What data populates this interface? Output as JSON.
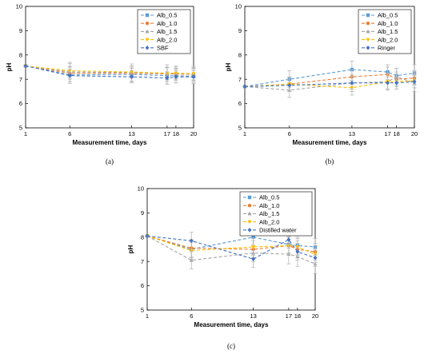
{
  "chart_data": [
    {
      "type": "line",
      "panel_label": "(a)",
      "xlabel": "Measurement time, days",
      "ylabel": "pH",
      "x": [
        1,
        6,
        13,
        17,
        18,
        20
      ],
      "xticks": [
        "1",
        "6",
        "13",
        "17",
        "18",
        "20"
      ],
      "ylim": [
        5,
        10
      ],
      "yticks": [
        "5",
        "6",
        "7",
        "8",
        "9",
        "10"
      ],
      "legend_position": "top-right",
      "series": [
        {
          "name": "Alb_0.5",
          "color": "#5b9bd5",
          "marker": "square",
          "values": [
            7.55,
            7.18,
            7.2,
            7.15,
            7.15,
            7.12
          ],
          "err": [
            0,
            0.35,
            0.3,
            0.35,
            0.3,
            0.3
          ]
        },
        {
          "name": "Alb_1.0",
          "color": "#ed7d31",
          "marker": "circle",
          "values": [
            7.55,
            7.25,
            7.25,
            7.22,
            7.22,
            7.2
          ],
          "err": [
            0,
            0.25,
            0.2,
            0.25,
            0.2,
            0.25
          ]
        },
        {
          "name": "Alb_1.5",
          "color": "#a5a5a5",
          "marker": "triangle-up",
          "values": [
            7.55,
            7.3,
            7.28,
            7.25,
            7.25,
            7.22
          ],
          "err": [
            0,
            0.4,
            0.35,
            0.35,
            0.3,
            0.3
          ]
        },
        {
          "name": "Alb_2.0",
          "color": "#ffc000",
          "marker": "triangle-down",
          "values": [
            7.55,
            7.35,
            7.3,
            7.25,
            7.25,
            7.23
          ],
          "err": [
            0,
            0.3,
            0.25,
            0.25,
            0.25,
            0.25
          ]
        },
        {
          "name": "SBF",
          "color": "#4472c4",
          "marker": "diamond",
          "values": [
            7.55,
            7.15,
            7.1,
            7.05,
            7.1,
            7.1
          ],
          "err": [
            0,
            0.25,
            0.25,
            0.25,
            0.25,
            0.25
          ]
        }
      ]
    },
    {
      "type": "line",
      "panel_label": "(b)",
      "xlabel": "Measurement time, days",
      "ylabel": "pH",
      "x": [
        1,
        6,
        13,
        17,
        18,
        20
      ],
      "xticks": [
        "1",
        "6",
        "13",
        "17",
        "18",
        "20"
      ],
      "ylim": [
        5,
        10
      ],
      "yticks": [
        "5",
        "6",
        "7",
        "8",
        "9",
        "10"
      ],
      "legend_position": "top-right",
      "series": [
        {
          "name": "Alb_0.5",
          "color": "#5b9bd5",
          "marker": "square",
          "values": [
            6.7,
            7.0,
            7.4,
            7.3,
            7.15,
            7.25
          ],
          "err": [
            0,
            0.35,
            0.35,
            0.3,
            0.3,
            0.35
          ]
        },
        {
          "name": "Alb_1.0",
          "color": "#ed7d31",
          "marker": "circle",
          "values": [
            6.7,
            6.8,
            7.1,
            7.2,
            7.0,
            7.05
          ],
          "err": [
            0,
            0.3,
            0.3,
            0.3,
            0.3,
            0.3
          ]
        },
        {
          "name": "Alb_1.5",
          "color": "#a5a5a5",
          "marker": "triangle-up",
          "values": [
            6.7,
            6.55,
            6.85,
            6.9,
            7.1,
            6.85
          ],
          "err": [
            0,
            0.3,
            0.35,
            0.35,
            0.35,
            0.35
          ]
        },
        {
          "name": "Alb_2.0",
          "color": "#ffc000",
          "marker": "triangle-down",
          "values": [
            6.7,
            6.8,
            6.65,
            6.9,
            6.9,
            6.95
          ],
          "err": [
            0,
            0.3,
            0.3,
            0.3,
            0.3,
            0.3
          ]
        },
        {
          "name": "Ringer",
          "color": "#4472c4",
          "marker": "diamond",
          "values": [
            6.7,
            6.75,
            6.85,
            6.85,
            6.85,
            6.9
          ],
          "err": [
            0,
            0.25,
            0.25,
            0.25,
            0.25,
            0.25
          ]
        }
      ]
    },
    {
      "type": "line",
      "panel_label": "(c)",
      "xlabel": "Measurement time, days",
      "ylabel": "pH",
      "x": [
        1,
        6,
        13,
        17,
        18,
        20
      ],
      "xticks": [
        "1",
        "6",
        "13",
        "17",
        "18",
        "20"
      ],
      "ylim": [
        5,
        10
      ],
      "yticks": [
        "5",
        "6",
        "7",
        "8",
        "9",
        "10"
      ],
      "legend_position": "top-right",
      "series": [
        {
          "name": "Alb_0.5",
          "color": "#5b9bd5",
          "marker": "square",
          "values": [
            8.05,
            7.5,
            8.0,
            7.7,
            7.65,
            7.6
          ],
          "err": [
            0,
            0.35,
            0.4,
            0.35,
            0.35,
            0.35
          ]
        },
        {
          "name": "Alb_1.0",
          "color": "#ed7d31",
          "marker": "circle",
          "values": [
            8.05,
            7.55,
            7.5,
            7.65,
            7.5,
            7.4
          ],
          "err": [
            0,
            0.35,
            0.35,
            0.35,
            0.35,
            0.35
          ]
        },
        {
          "name": "Alb_1.5",
          "color": "#a5a5a5",
          "marker": "triangle-up",
          "values": [
            8.05,
            7.05,
            7.35,
            7.3,
            7.2,
            6.9
          ],
          "err": [
            0,
            0.35,
            0.35,
            0.4,
            0.4,
            0.4
          ]
        },
        {
          "name": "Alb_2.0",
          "color": "#ffc000",
          "marker": "triangle-down",
          "values": [
            8.05,
            7.45,
            7.6,
            7.65,
            7.6,
            7.3
          ],
          "err": [
            0,
            0.35,
            0.35,
            0.35,
            0.35,
            0.35
          ]
        },
        {
          "name": "Distilled water",
          "color": "#4472c4",
          "marker": "diamond",
          "values": [
            8.05,
            7.85,
            7.1,
            7.9,
            7.4,
            7.15
          ],
          "err": [
            0,
            0.35,
            0.35,
            0.35,
            0.35,
            0.35
          ]
        }
      ]
    }
  ]
}
